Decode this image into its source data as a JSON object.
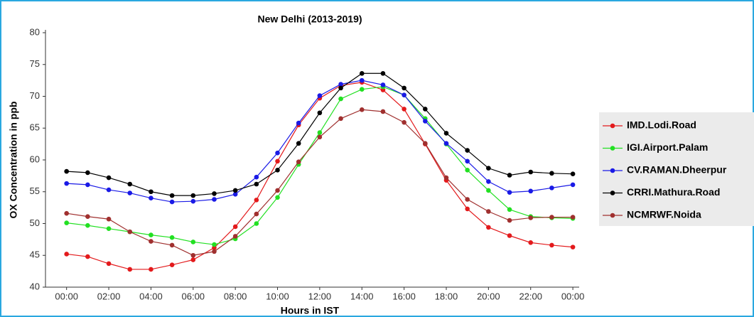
{
  "chart_data": {
    "type": "line",
    "title": "New Delhi (2013-2019)",
    "x_label": "Hours in IST",
    "y_label": "OX Concentration in ppb",
    "x": [
      0,
      1,
      2,
      3,
      4,
      5,
      6,
      7,
      8,
      9,
      10,
      11,
      12,
      13,
      14,
      15,
      16,
      17,
      18,
      19,
      20,
      21,
      22,
      23,
      24
    ],
    "xlim": [
      -1,
      24.3
    ],
    "ylim": [
      40,
      80
    ],
    "xticks": [
      {
        "value": 0,
        "label": "00:00"
      },
      {
        "value": 2,
        "label": "02:00"
      },
      {
        "value": 4,
        "label": "04:00"
      },
      {
        "value": 6,
        "label": "06:00"
      },
      {
        "value": 8,
        "label": "08:00"
      },
      {
        "value": 10,
        "label": "10:00"
      },
      {
        "value": 12,
        "label": "12:00"
      },
      {
        "value": 14,
        "label": "14:00"
      },
      {
        "value": 16,
        "label": "16:00"
      },
      {
        "value": 18,
        "label": "18:00"
      },
      {
        "value": 20,
        "label": "20:00"
      },
      {
        "value": 22,
        "label": "22:00"
      },
      {
        "value": 24,
        "label": "00:00"
      }
    ],
    "yticks": [
      40,
      45,
      50,
      55,
      60,
      65,
      70,
      75,
      80
    ],
    "grid": false,
    "legend_position": "right",
    "series": [
      {
        "name": "IMD.Lodi.Road",
        "color": "#e31a1c",
        "values": [
          45.2,
          44.8,
          43.7,
          42.8,
          42.8,
          43.5,
          44.3,
          46.2,
          49.5,
          53.7,
          59.8,
          65.5,
          69.7,
          71.7,
          72.2,
          71.0,
          68.0,
          62.5,
          56.8,
          52.3,
          49.4,
          48.1,
          47.0,
          46.6,
          46.3
        ]
      },
      {
        "name": "IGI.Airport.Palam",
        "color": "#22e022",
        "values": [
          50.1,
          49.7,
          49.2,
          48.7,
          48.2,
          47.8,
          47.1,
          46.7,
          47.6,
          50.0,
          54.1,
          59.3,
          64.3,
          69.6,
          71.1,
          71.5,
          70.2,
          66.5,
          62.5,
          58.4,
          55.2,
          52.2,
          51.1,
          50.9,
          50.8
        ]
      },
      {
        "name": "CV.RAMAN.Dheerpur",
        "color": "#1a1ae6",
        "values": [
          56.3,
          56.1,
          55.3,
          54.8,
          54.0,
          53.4,
          53.5,
          53.8,
          54.6,
          57.3,
          61.1,
          65.8,
          70.1,
          71.9,
          72.5,
          71.8,
          70.2,
          66.1,
          62.6,
          59.8,
          56.6,
          54.9,
          55.1,
          55.6,
          56.1
        ]
      },
      {
        "name": "CRRI.Mathura.Road",
        "color": "#000000",
        "values": [
          58.2,
          58.0,
          57.2,
          56.2,
          55.0,
          54.4,
          54.4,
          54.7,
          55.2,
          56.2,
          58.4,
          62.6,
          67.4,
          71.3,
          73.6,
          73.6,
          71.3,
          68.0,
          64.2,
          61.5,
          58.7,
          57.6,
          58.1,
          57.9,
          57.8
        ]
      },
      {
        "name": "NCMRWF.Noida",
        "color": "#a0302f",
        "values": [
          51.6,
          51.1,
          50.7,
          48.7,
          47.2,
          46.6,
          45.0,
          45.6,
          48.0,
          51.5,
          55.2,
          59.7,
          63.6,
          66.5,
          67.9,
          67.6,
          65.9,
          62.6,
          57.2,
          53.8,
          51.9,
          50.5,
          50.9,
          51.0,
          51.0
        ]
      }
    ]
  }
}
